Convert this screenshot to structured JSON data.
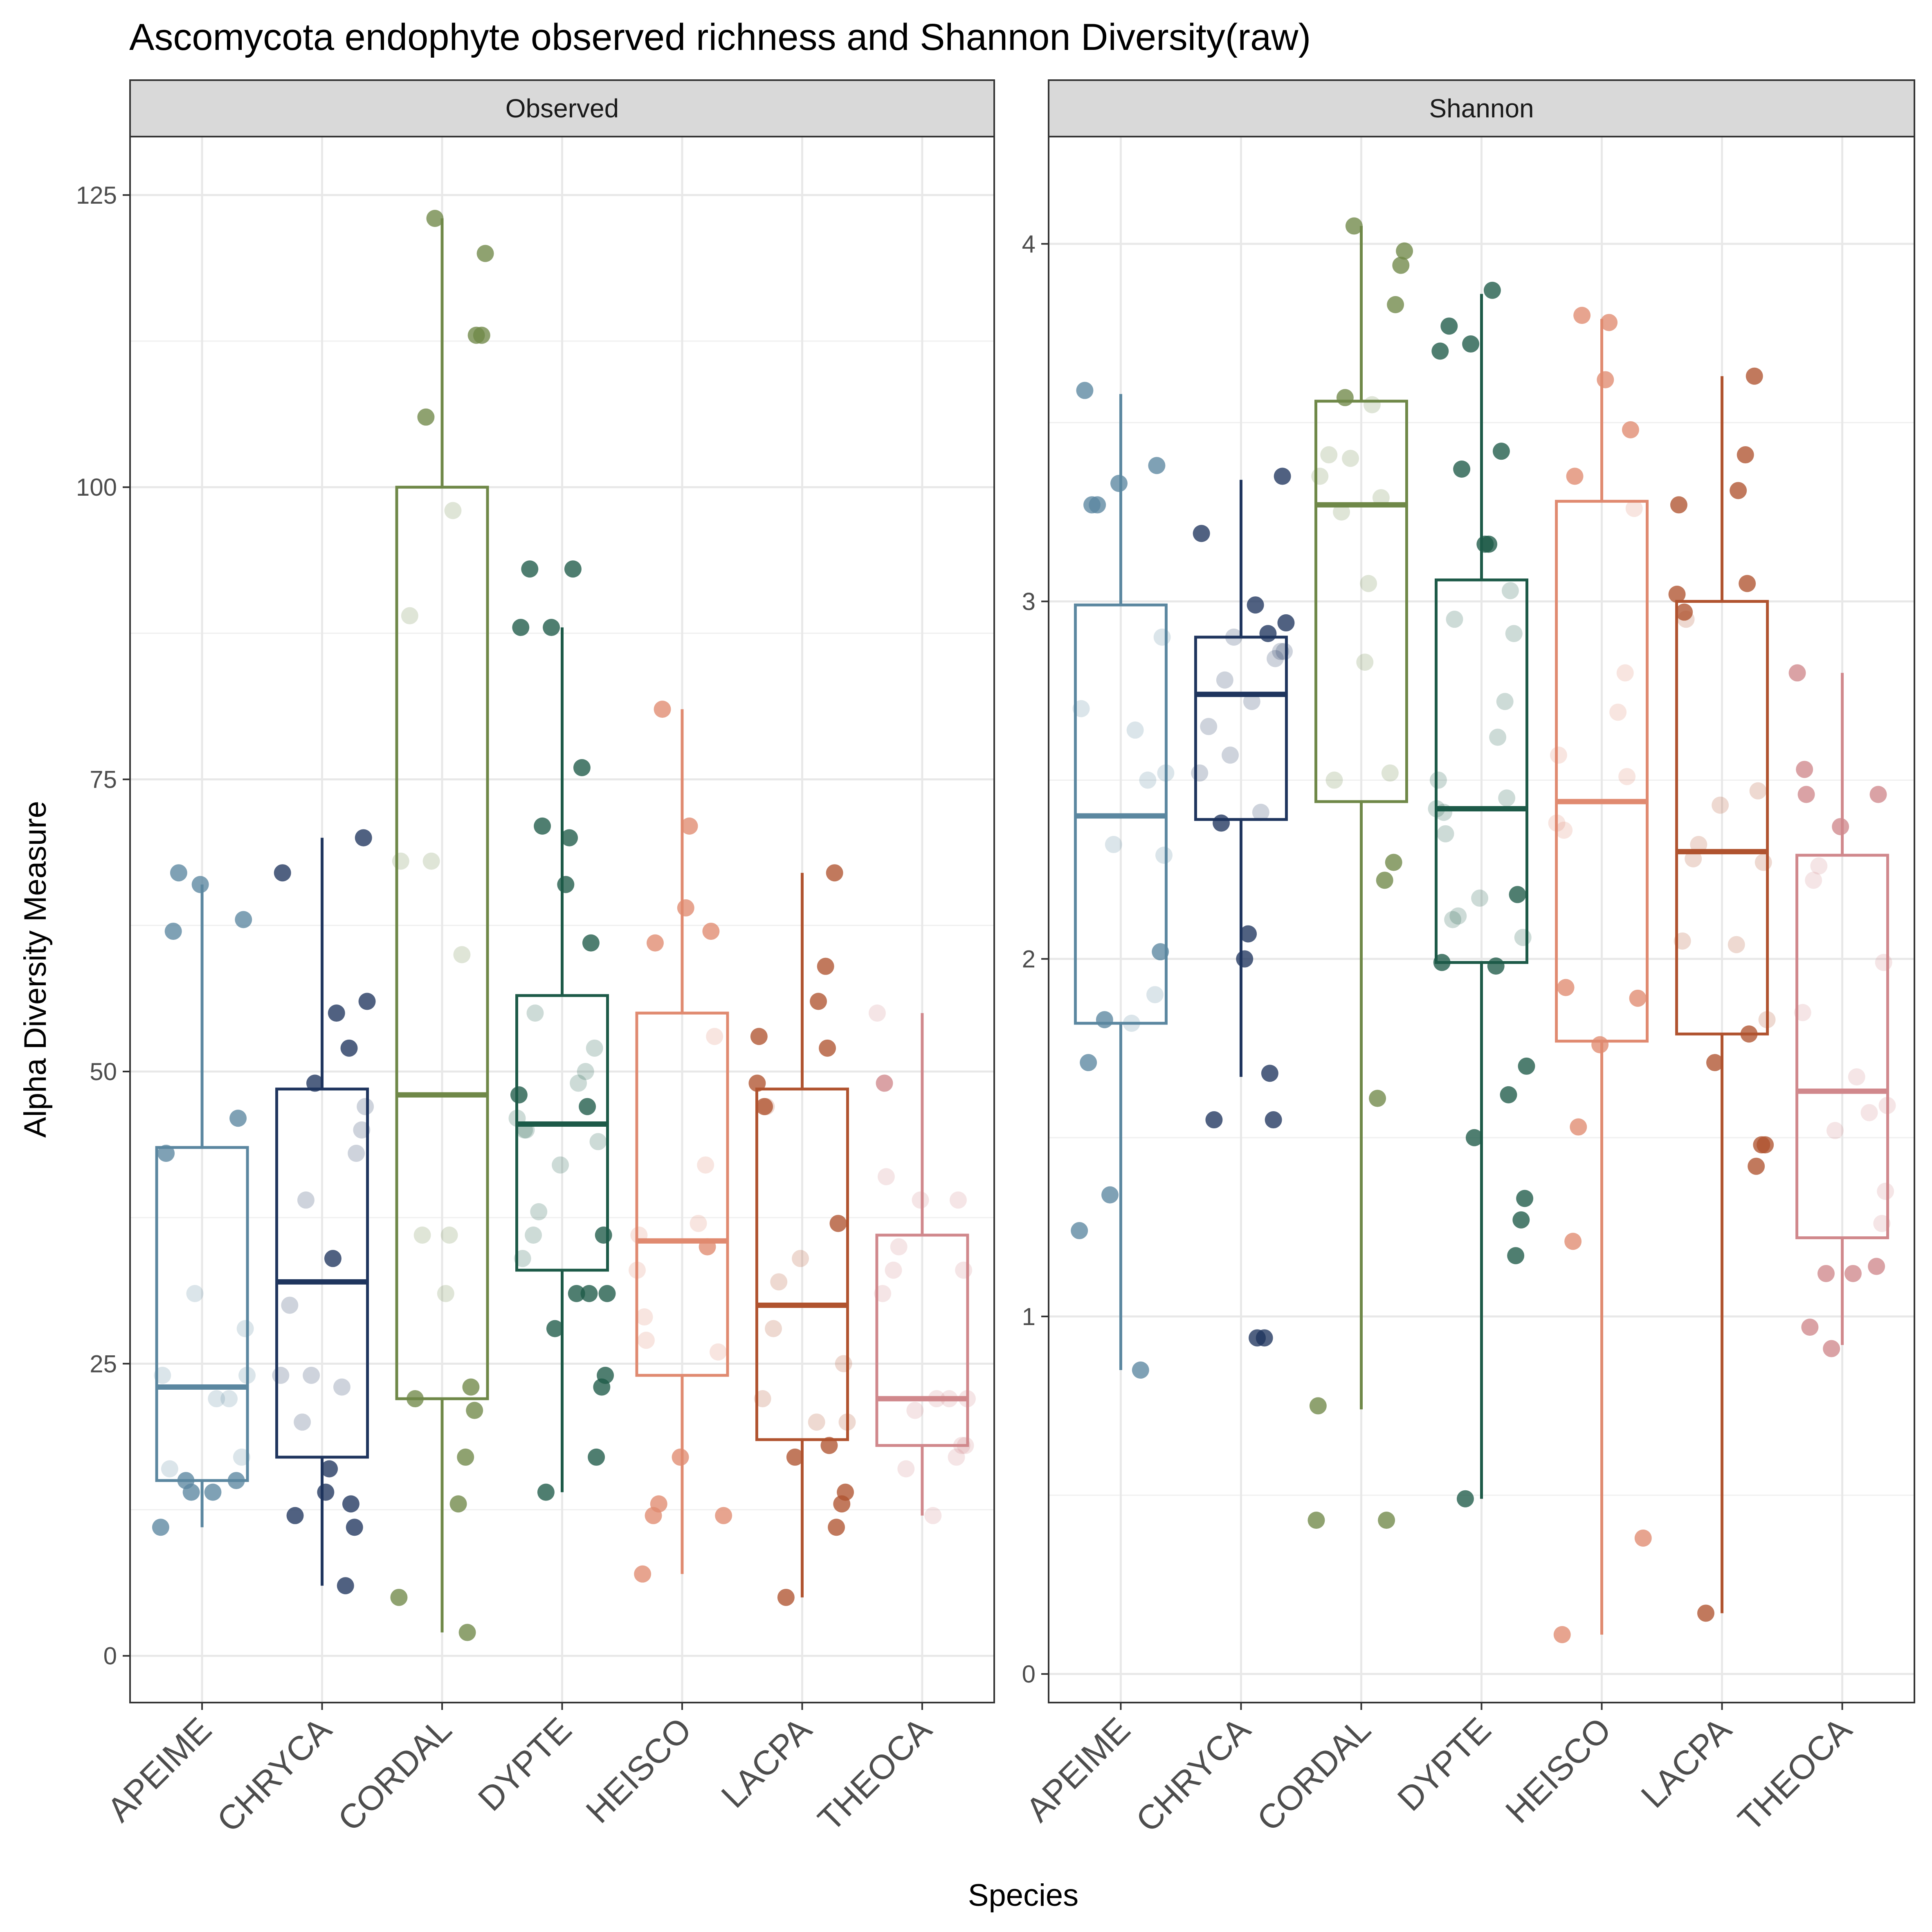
{
  "chart_data": {
    "type": "box",
    "title": "Ascomycota endophyte observed richness and Shannon Diversity(raw)",
    "xlabel": "Species",
    "ylabel": "Alpha Diversity Measure",
    "categories": [
      "APEIME",
      "CHRYCA",
      "CORDAL",
      "DYPTE",
      "HEISCO",
      "LACPA",
      "THEOCA"
    ],
    "colors": [
      "#5b87a0",
      "#1f355e",
      "#6f8848",
      "#1d5a48",
      "#e08a70",
      "#b0532f",
      "#d0888c"
    ],
    "grid": true,
    "legend": "none",
    "panels": [
      {
        "strip": "Observed",
        "ylim": [
          -4,
          130
        ],
        "yticks": [
          0,
          25,
          50,
          75,
          100,
          125
        ],
        "boxes": [
          {
            "category": "APEIME",
            "lower_whisker": 11,
            "q1": 15,
            "median": 23,
            "q3": 43.5,
            "upper_whisker": 66
          },
          {
            "category": "CHRYCA",
            "lower_whisker": 6,
            "q1": 17,
            "median": 32,
            "q3": 48.5,
            "upper_whisker": 70
          },
          {
            "category": "CORDAL",
            "lower_whisker": 2,
            "q1": 22,
            "median": 48,
            "q3": 100,
            "upper_whisker": 123
          },
          {
            "category": "DYPTE",
            "lower_whisker": 14,
            "q1": 33,
            "median": 45.5,
            "q3": 56.5,
            "upper_whisker": 88
          },
          {
            "category": "HEISCO",
            "lower_whisker": 7,
            "q1": 24,
            "median": 35.5,
            "q3": 55,
            "upper_whisker": 81
          },
          {
            "category": "LACPA",
            "lower_whisker": 5,
            "q1": 18.5,
            "median": 30,
            "q3": 48.5,
            "upper_whisker": 67
          },
          {
            "category": "THEOCA",
            "lower_whisker": 12,
            "q1": 18,
            "median": 22,
            "q3": 36,
            "upper_whisker": 55
          }
        ],
        "points": [
          [
            [
              43,
              46,
              66,
              67,
              62,
              63,
              24,
              22,
              24,
              22,
              31,
              28,
              17,
              15,
              15,
              14,
              16,
              14,
              11
            ],
            [
              1,
              1,
              1,
              1,
              1,
              1,
              0,
              0,
              0,
              0,
              0,
              0,
              0,
              1,
              1,
              1,
              0,
              1,
              1
            ]
          ],
          [
            [
              70,
              67,
              55,
              56,
              52,
              49,
              47,
              45,
              43,
              39,
              34,
              30,
              24,
              24,
              23,
              20,
              16,
              14,
              13,
              12,
              11,
              6
            ],
            [
              1,
              1,
              1,
              1,
              1,
              1,
              0,
              0,
              0,
              0,
              1,
              0,
              0,
              0,
              0,
              0,
              1,
              1,
              1,
              1,
              1,
              1
            ]
          ],
          [
            [
              123,
              120,
              113,
              113,
              106,
              98,
              89,
              68,
              68,
              60,
              36,
              36,
              31,
              23,
              22,
              21,
              17,
              13,
              5,
              2
            ],
            [
              1,
              1,
              1,
              1,
              1,
              0,
              0,
              0,
              0,
              0,
              0,
              0,
              0,
              1,
              1,
              1,
              1,
              1,
              1,
              1
            ]
          ],
          [
            [
              93,
              93,
              88,
              88,
              76,
              71,
              70,
              66,
              61,
              55,
              52,
              50,
              49,
              48,
              47,
              46,
              45,
              45,
              44,
              42,
              38,
              36,
              36,
              34,
              31,
              31,
              31,
              28,
              24,
              23,
              17,
              14
            ],
            [
              1,
              1,
              1,
              1,
              1,
              1,
              1,
              1,
              1,
              0,
              0,
              0,
              0,
              1,
              1,
              0,
              0,
              0,
              0,
              0,
              0,
              0,
              1,
              0,
              1,
              1,
              1,
              1,
              1,
              1,
              1,
              1
            ]
          ],
          [
            [
              81,
              71,
              64,
              62,
              61,
              53,
              42,
              37,
              36,
              35,
              33,
              29,
              27,
              26,
              17,
              13,
              12,
              12,
              7
            ],
            [
              1,
              1,
              1,
              1,
              1,
              0,
              0,
              0,
              0,
              1,
              0,
              0,
              0,
              0,
              1,
              1,
              1,
              1,
              1
            ]
          ],
          [
            [
              67,
              59,
              56,
              53,
              52,
              49,
              47,
              47,
              37,
              34,
              32,
              28,
              25,
              22,
              20,
              20,
              18,
              17,
              14,
              13,
              11,
              5
            ],
            [
              1,
              1,
              1,
              1,
              1,
              1,
              1,
              0,
              1,
              0,
              0,
              0,
              0,
              0,
              0,
              0,
              1,
              1,
              1,
              1,
              1,
              1
            ]
          ],
          [
            [
              55,
              49,
              41,
              39,
              39,
              35,
              33,
              33,
              31,
              22,
              22,
              22,
              21,
              18,
              18,
              17,
              16,
              12
            ],
            [
              0,
              1,
              0,
              0,
              0,
              0,
              0,
              0,
              0,
              0,
              0,
              0,
              0,
              0,
              0,
              0,
              0,
              0
            ]
          ]
        ]
      },
      {
        "strip": "Shannon",
        "ylim": [
          -0.08,
          4.3
        ],
        "yticks": [
          0,
          1,
          2,
          3,
          4
        ],
        "boxes": [
          {
            "category": "APEIME",
            "lower_whisker": 0.85,
            "q1": 1.82,
            "median": 2.4,
            "q3": 2.99,
            "upper_whisker": 3.58
          },
          {
            "category": "CHRYCA",
            "lower_whisker": 1.67,
            "q1": 2.39,
            "median": 2.74,
            "q3": 2.9,
            "upper_whisker": 3.34
          },
          {
            "category": "CORDAL",
            "lower_whisker": 0.74,
            "q1": 2.44,
            "median": 3.27,
            "q3": 3.56,
            "upper_whisker": 4.05
          },
          {
            "category": "DYPTE",
            "lower_whisker": 0.49,
            "q1": 1.99,
            "median": 2.42,
            "q3": 3.06,
            "upper_whisker": 3.86
          },
          {
            "category": "HEISCO",
            "lower_whisker": 0.11,
            "q1": 1.77,
            "median": 2.44,
            "q3": 3.28,
            "upper_whisker": 3.79
          },
          {
            "category": "LACPA",
            "lower_whisker": 0.17,
            "q1": 1.79,
            "median": 2.3,
            "q3": 3.0,
            "upper_whisker": 3.63
          },
          {
            "category": "THEOCA",
            "lower_whisker": 0.92,
            "q1": 1.22,
            "median": 1.63,
            "q3": 2.29,
            "upper_whisker": 2.8
          }
        ],
        "points": [
          [
            [
              3.59,
              3.38,
              3.33,
              3.27,
              3.27,
              2.9,
              2.7,
              2.64,
              2.52,
              2.5,
              2.32,
              2.29,
              2.02,
              1.9,
              1.83,
              1.82,
              1.71,
              1.34,
              1.24,
              0.85
            ],
            [
              1,
              1,
              1,
              1,
              1,
              0,
              0,
              0,
              0,
              0,
              0,
              0,
              1,
              0,
              1,
              0,
              1,
              1,
              1,
              1
            ]
          ],
          [
            [
              3.35,
              3.19,
              2.99,
              2.94,
              2.91,
              2.9,
              2.86,
              2.86,
              2.84,
              2.78,
              2.72,
              2.65,
              2.57,
              2.52,
              2.41,
              2.38,
              2.07,
              2.0,
              1.68,
              1.55,
              1.55,
              0.94,
              0.94
            ],
            [
              1,
              1,
              1,
              1,
              1,
              0,
              0,
              0,
              0,
              0,
              0,
              0,
              0,
              0,
              0,
              1,
              1,
              1,
              1,
              1,
              1,
              1,
              1
            ]
          ],
          [
            [
              4.05,
              3.98,
              3.94,
              3.83,
              3.57,
              3.55,
              3.41,
              3.4,
              3.35,
              3.29,
              3.25,
              3.05,
              2.83,
              2.52,
              2.5,
              2.27,
              2.22,
              1.61,
              0.75,
              0.43,
              0.43
            ],
            [
              1,
              1,
              1,
              1,
              1,
              0,
              0,
              0,
              0,
              0,
              0,
              0,
              0,
              0,
              0,
              1,
              1,
              1,
              1,
              1,
              1
            ]
          ],
          [
            [
              3.87,
              3.77,
              3.72,
              3.7,
              3.42,
              3.37,
              3.16,
              3.16,
              3.03,
              2.95,
              2.91,
              2.72,
              2.62,
              2.5,
              2.45,
              2.42,
              2.41,
              2.35,
              2.18,
              2.17,
              2.12,
              2.11,
              2.06,
              1.99,
              1.98,
              1.7,
              1.62,
              1.5,
              1.33,
              1.27,
              1.17,
              0.49
            ],
            [
              1,
              1,
              1,
              1,
              1,
              1,
              1,
              1,
              0,
              0,
              0,
              0,
              0,
              0,
              0,
              0,
              0,
              0,
              1,
              0,
              0,
              0,
              0,
              1,
              1,
              1,
              1,
              1,
              1,
              1,
              1,
              1
            ]
          ],
          [
            [
              3.8,
              3.78,
              3.62,
              3.48,
              3.35,
              3.26,
              2.8,
              2.69,
              2.57,
              2.51,
              2.38,
              2.36,
              1.92,
              1.89,
              1.76,
              1.53,
              1.21,
              0.38,
              0.11
            ],
            [
              1,
              1,
              1,
              1,
              1,
              0,
              0,
              0,
              0,
              0,
              0,
              0,
              1,
              1,
              1,
              1,
              1,
              1,
              1
            ]
          ],
          [
            [
              3.63,
              3.41,
              3.31,
              3.27,
              3.05,
              3.02,
              2.97,
              2.95,
              2.47,
              2.43,
              2.32,
              2.28,
              2.27,
              2.05,
              2.04,
              1.83,
              1.79,
              1.71,
              1.48,
              1.48,
              1.42,
              0.17
            ],
            [
              1,
              1,
              1,
              1,
              1,
              1,
              1,
              0,
              0,
              0,
              0,
              0,
              0,
              0,
              0,
              0,
              1,
              1,
              1,
              1,
              1,
              1
            ]
          ],
          [
            [
              2.8,
              2.53,
              2.46,
              2.46,
              2.37,
              2.26,
              2.22,
              1.99,
              1.85,
              1.67,
              1.59,
              1.57,
              1.52,
              1.35,
              1.26,
              1.14,
              1.12,
              1.12,
              0.97,
              0.91
            ],
            [
              1,
              1,
              1,
              1,
              1,
              0,
              0,
              0,
              0,
              0,
              0,
              0,
              0,
              0,
              0,
              1,
              1,
              1,
              1,
              1
            ]
          ]
        ]
      }
    ]
  }
}
